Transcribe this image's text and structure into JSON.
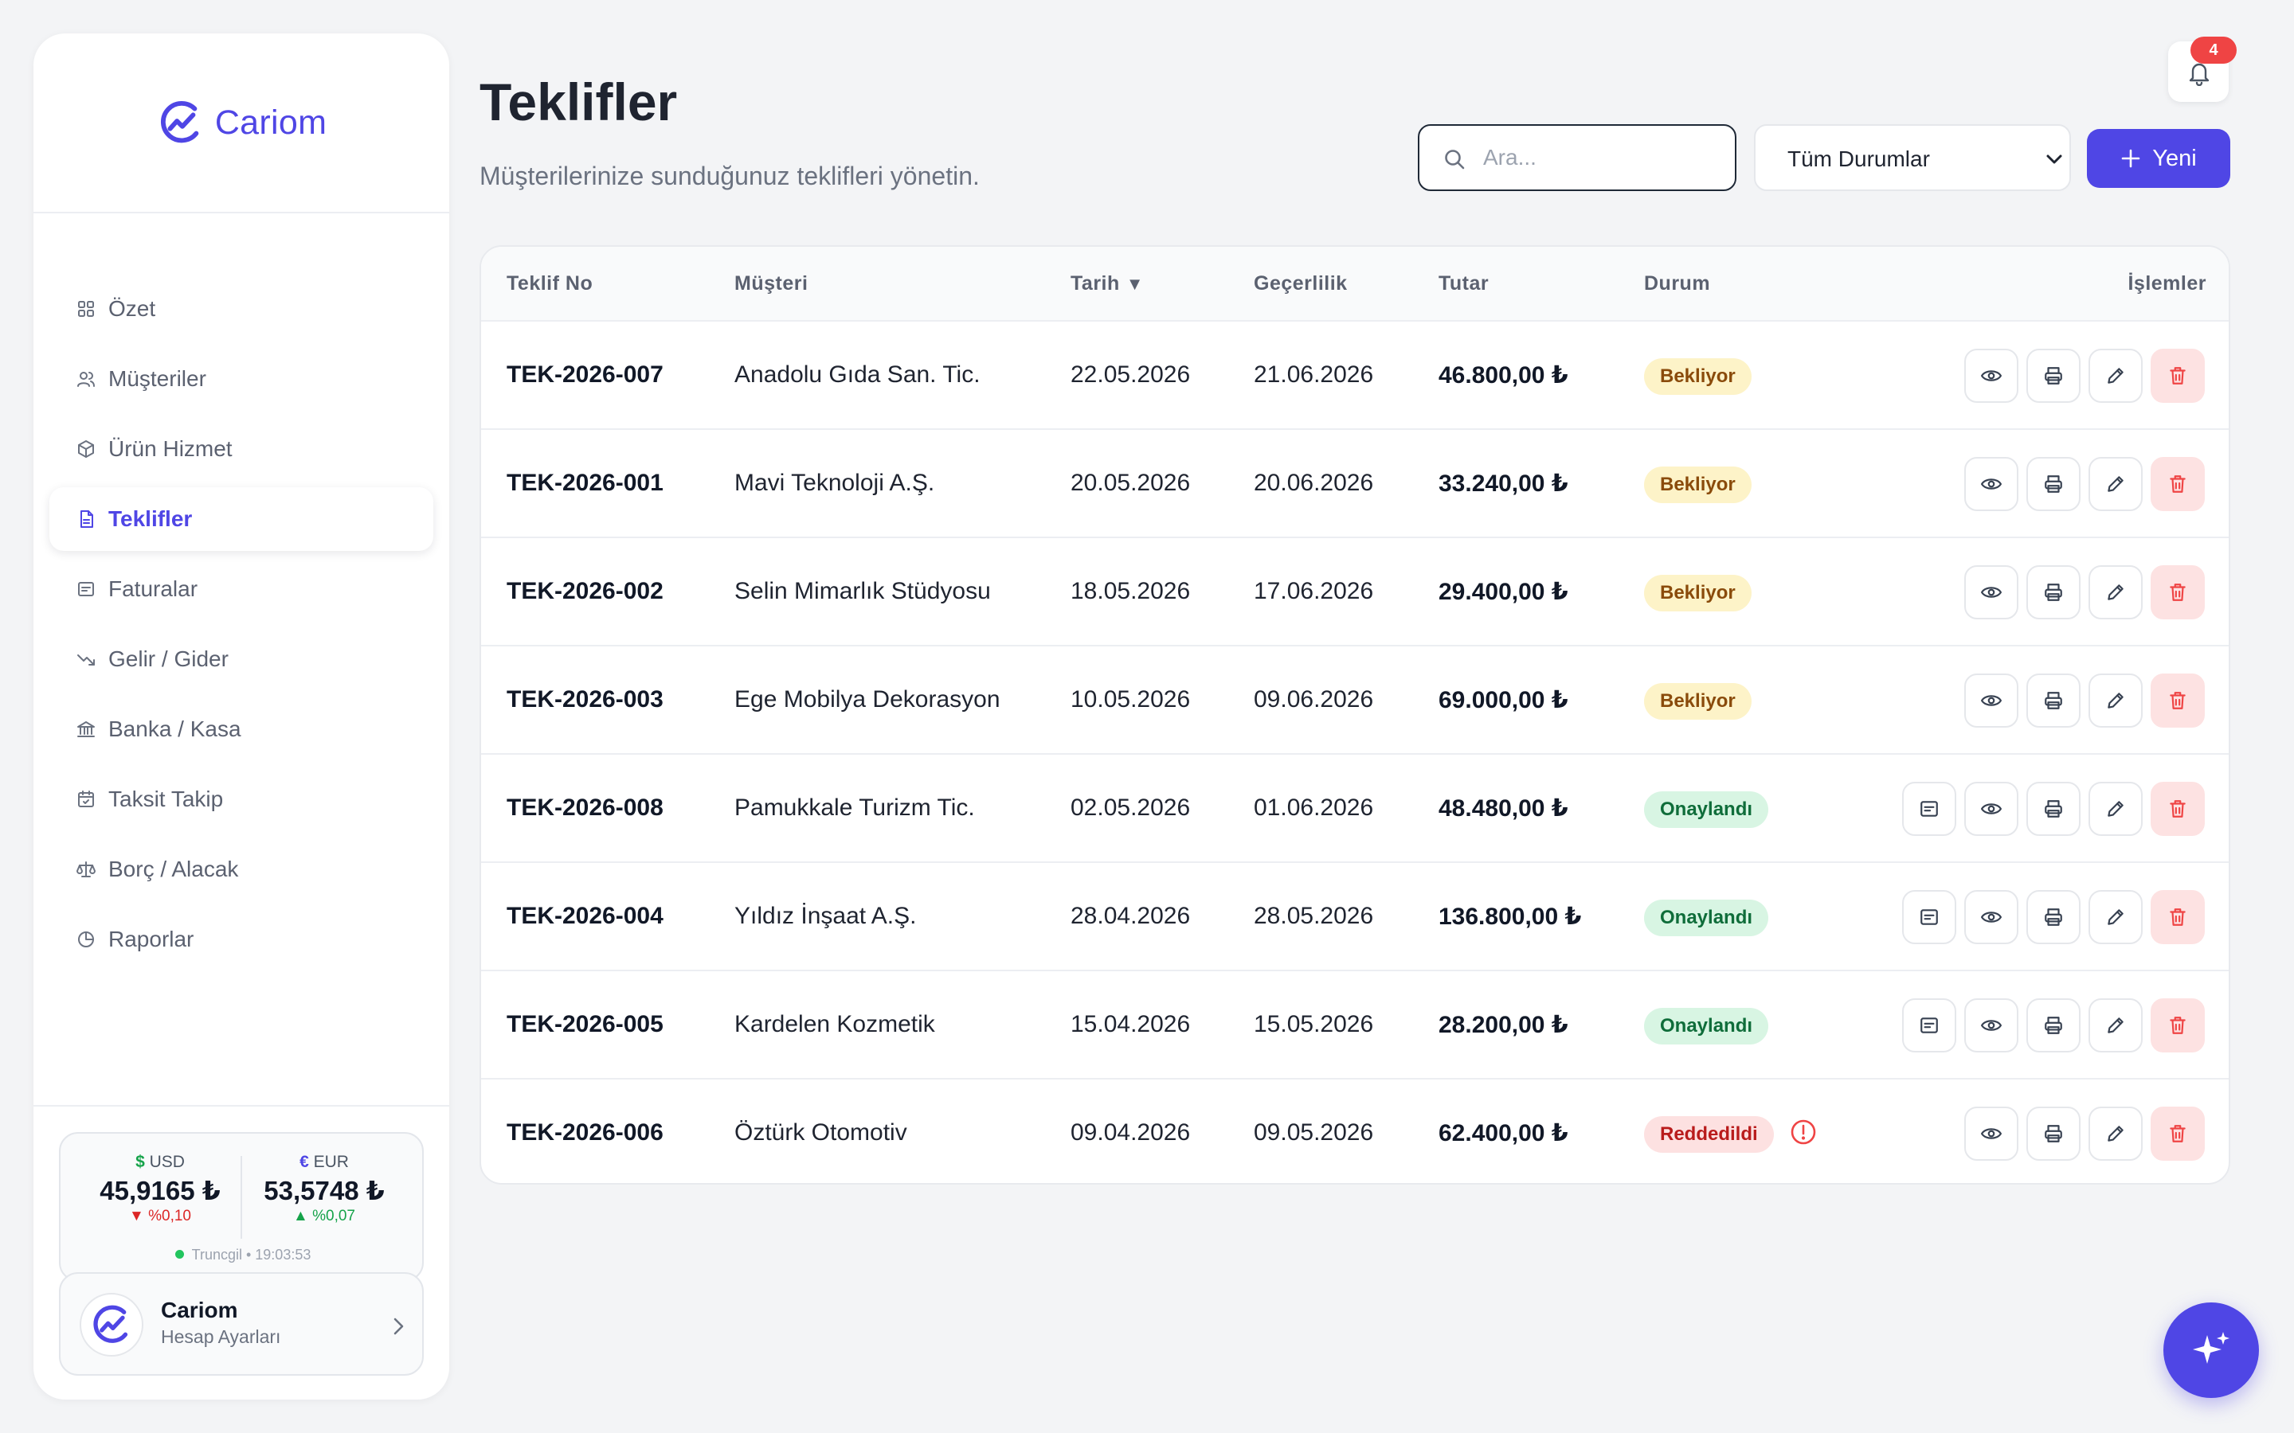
{
  "brand": {
    "name": "Cariom",
    "color": "#4f46e5"
  },
  "sidebar": {
    "items": [
      {
        "label": "Özet",
        "icon": "grid-icon",
        "active": false
      },
      {
        "label": "Müşteriler",
        "icon": "users-icon",
        "active": false
      },
      {
        "label": "Ürün Hizmet",
        "icon": "box-icon",
        "active": false
      },
      {
        "label": "Teklifler",
        "icon": "document-icon",
        "active": true
      },
      {
        "label": "Faturalar",
        "icon": "invoice-icon",
        "active": false
      },
      {
        "label": "Gelir / Gider",
        "icon": "trend-down-icon",
        "active": false
      },
      {
        "label": "Banka / Kasa",
        "icon": "bank-icon",
        "active": false
      },
      {
        "label": "Taksit Takip",
        "icon": "calendar-check-icon",
        "active": false
      },
      {
        "label": "Borç / Alacak",
        "icon": "scale-icon",
        "active": false
      },
      {
        "label": "Raporlar",
        "icon": "pie-chart-icon",
        "active": false
      }
    ]
  },
  "currency": {
    "usd": {
      "symbol": "$",
      "code": "USD",
      "value": "45,9165 ₺",
      "change": "%0,10",
      "direction": "down"
    },
    "eur": {
      "symbol": "€",
      "code": "EUR",
      "value": "53,5748 ₺",
      "change": "%0,07",
      "direction": "up"
    },
    "source": "Truncgil • 19:03:53"
  },
  "account": {
    "name": "Cariom",
    "subtitle": "Hesap Ayarları"
  },
  "header": {
    "title": "Teklifler",
    "subtitle": "Müşterilerinize sunduğunuz teklifleri yönetin.",
    "search_placeholder": "Ara...",
    "status_filter": "Tüm Durumlar",
    "new_button": "Yeni",
    "notification_count": "4"
  },
  "table": {
    "columns": {
      "no": "Teklif No",
      "customer": "Müşteri",
      "date": "Tarih",
      "validity": "Geçerlilik",
      "amount": "Tutar",
      "status": "Durum",
      "actions": "İşlemler"
    },
    "rows": [
      {
        "no": "TEK-2026-007",
        "customer": "Anadolu Gıda San. Tic.",
        "date": "22.05.2026",
        "validity": "21.06.2026",
        "amount": "46.800,00 ₺",
        "status": "Bekliyor",
        "status_type": "pending",
        "invoice_action": false,
        "warning": false
      },
      {
        "no": "TEK-2026-001",
        "customer": "Mavi Teknoloji A.Ş.",
        "date": "20.05.2026",
        "validity": "20.06.2026",
        "amount": "33.240,00 ₺",
        "status": "Bekliyor",
        "status_type": "pending",
        "invoice_action": false,
        "warning": false
      },
      {
        "no": "TEK-2026-002",
        "customer": "Selin Mimarlık Stüdyosu",
        "date": "18.05.2026",
        "validity": "17.06.2026",
        "amount": "29.400,00 ₺",
        "status": "Bekliyor",
        "status_type": "pending",
        "invoice_action": false,
        "warning": false
      },
      {
        "no": "TEK-2026-003",
        "customer": "Ege Mobilya Dekorasyon",
        "date": "10.05.2026",
        "validity": "09.06.2026",
        "amount": "69.000,00 ₺",
        "status": "Bekliyor",
        "status_type": "pending",
        "invoice_action": false,
        "warning": false
      },
      {
        "no": "TEK-2026-008",
        "customer": "Pamukkale Turizm Tic.",
        "date": "02.05.2026",
        "validity": "01.06.2026",
        "amount": "48.480,00 ₺",
        "status": "Onaylandı",
        "status_type": "approved",
        "invoice_action": true,
        "warning": false
      },
      {
        "no": "TEK-2026-004",
        "customer": "Yıldız İnşaat A.Ş.",
        "date": "28.04.2026",
        "validity": "28.05.2026",
        "amount": "136.800,00 ₺",
        "status": "Onaylandı",
        "status_type": "approved",
        "invoice_action": true,
        "warning": false
      },
      {
        "no": "TEK-2026-005",
        "customer": "Kardelen Kozmetik",
        "date": "15.04.2026",
        "validity": "15.05.2026",
        "amount": "28.200,00 ₺",
        "status": "Onaylandı",
        "status_type": "approved",
        "invoice_action": true,
        "warning": false
      },
      {
        "no": "TEK-2026-006",
        "customer": "Öztürk Otomotiv",
        "date": "09.04.2026",
        "validity": "09.05.2026",
        "amount": "62.400,00 ₺",
        "status": "Reddedildi",
        "status_type": "rejected",
        "invoice_action": false,
        "warning": true
      }
    ]
  },
  "colors": {
    "accent": "#4f46e5",
    "pending_bg": "#fdf3c8",
    "approved_bg": "#d8f5e3",
    "rejected_bg": "#fde1e1",
    "danger": "#ef4444"
  }
}
